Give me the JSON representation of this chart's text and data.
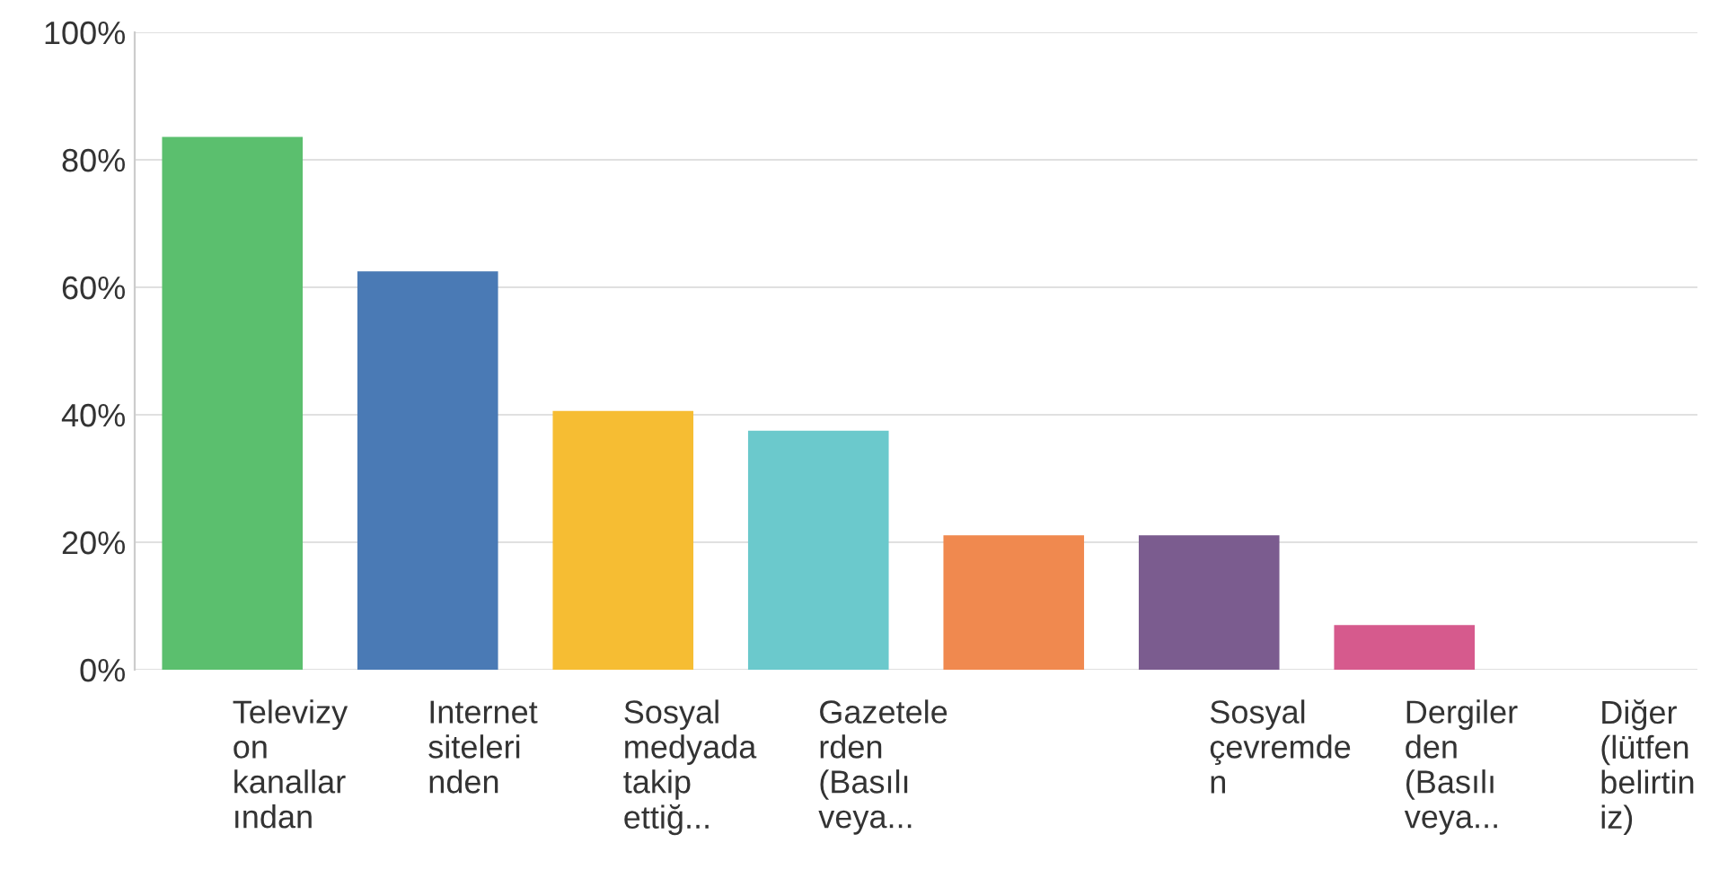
{
  "chart_data": {
    "type": "bar",
    "categories": [
      "Televizy\non\nkanallar\nından",
      "Internet\nsiteleri\nnden",
      "Sosyal\nmedyada\ntakip\nettiğ...",
      "Gazetele\nrden\n(Basılı\nveya...",
      null,
      "Sosyal\nçevremde\nn",
      "Dergiler\nden\n(Basılı\nveya...",
      "Diğer\n(lütfen\nbelirtin\niz)"
    ],
    "values": [
      83.6,
      62.5,
      40.6,
      37.5,
      21.1,
      21.1,
      7.0,
      0
    ],
    "colors": [
      "#5bbf6e",
      "#4a7ab5",
      "#f6bd33",
      "#6bc9cc",
      "#f0894f",
      "#7b5c8f",
      "#d65a8d",
      "#999999"
    ],
    "ylim": [
      0,
      100
    ],
    "yticks": [
      {
        "value": 0,
        "label": "0%"
      },
      {
        "value": 20,
        "label": "20%"
      },
      {
        "value": 40,
        "label": "40%"
      },
      {
        "value": 60,
        "label": "60%"
      },
      {
        "value": 80,
        "label": "80%"
      },
      {
        "value": 100,
        "label": "100%"
      }
    ],
    "grid": "y",
    "legend": false
  }
}
